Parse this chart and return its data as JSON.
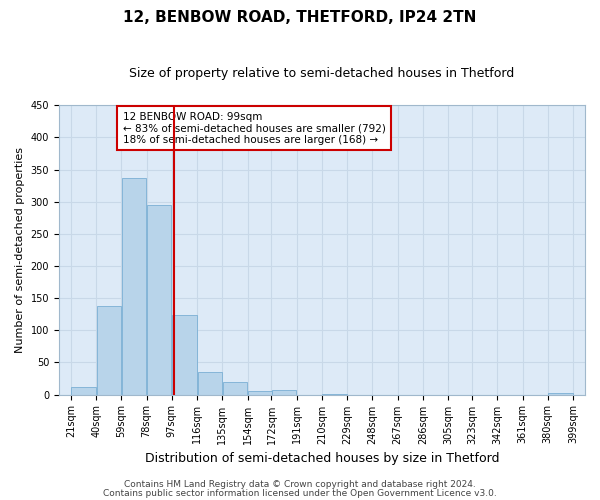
{
  "title": "12, BENBOW ROAD, THETFORD, IP24 2TN",
  "subtitle": "Size of property relative to semi-detached houses in Thetford",
  "xlabel": "Distribution of semi-detached houses by size in Thetford",
  "ylabel": "Number of semi-detached properties",
  "bins": [
    21,
    40,
    59,
    78,
    97,
    116,
    135,
    154,
    172,
    191,
    210,
    229,
    248,
    267,
    286,
    305,
    323,
    342,
    361,
    380,
    399
  ],
  "bar_labels": [
    "21sqm",
    "40sqm",
    "59sqm",
    "78sqm",
    "97sqm",
    "116sqm",
    "135sqm",
    "154sqm",
    "172sqm",
    "191sqm",
    "210sqm",
    "229sqm",
    "248sqm",
    "267sqm",
    "286sqm",
    "305sqm",
    "323sqm",
    "342sqm",
    "361sqm",
    "380sqm",
    "399sqm"
  ],
  "values": [
    11,
    138,
    337,
    295,
    123,
    35,
    20,
    5,
    7,
    0,
    1,
    0,
    0,
    0,
    0,
    0,
    0,
    0,
    0,
    2
  ],
  "bar_color": "#b8d4ea",
  "bar_edge_color": "#7aafd4",
  "vline_x": 99,
  "vline_color": "#cc0000",
  "annotation_text": "12 BENBOW ROAD: 99sqm\n← 83% of semi-detached houses are smaller (792)\n18% of semi-detached houses are larger (168) →",
  "annotation_box_color": "#ffffff",
  "annotation_box_edge": "#cc0000",
  "ylim": [
    0,
    450
  ],
  "yticks": [
    0,
    50,
    100,
    150,
    200,
    250,
    300,
    350,
    400,
    450
  ],
  "footer1": "Contains HM Land Registry data © Crown copyright and database right 2024.",
  "footer2": "Contains public sector information licensed under the Open Government Licence v3.0.",
  "bg_color": "#ffffff",
  "plot_bg_color": "#ddeaf7",
  "grid_color": "#c8d8e8",
  "title_fontsize": 11,
  "subtitle_fontsize": 9,
  "xlabel_fontsize": 9,
  "ylabel_fontsize": 8,
  "tick_fontsize": 7,
  "annotation_fontsize": 7.5,
  "footer_fontsize": 6.5
}
